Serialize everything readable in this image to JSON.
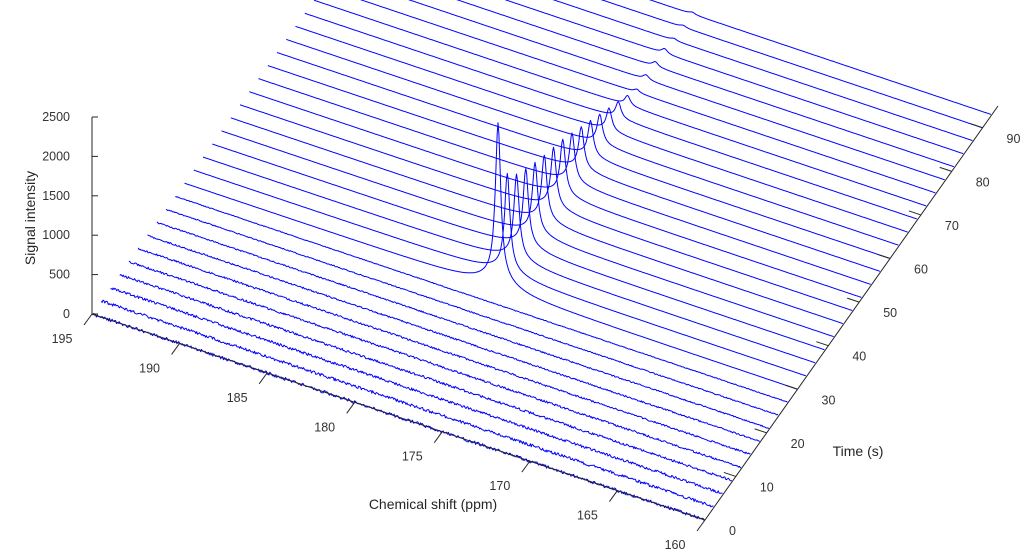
{
  "chart_data": {
    "type": "line",
    "subtype": "waterfall-3d",
    "xlabel": "Chemical shift (ppm)",
    "ylabel": "Time (s)",
    "zlabel": "Signal intensity",
    "xlim": [
      195,
      160
    ],
    "ylim": [
      0,
      95
    ],
    "zlim": [
      0,
      2500
    ],
    "xticks": [
      "195",
      "190",
      "185",
      "180",
      "175",
      "170",
      "165",
      "160"
    ],
    "yticks": [
      "0",
      "10",
      "20",
      "30",
      "40",
      "50",
      "60",
      "70",
      "80",
      "90"
    ],
    "zticks": [
      "0",
      "500",
      "1000",
      "1500",
      "2000",
      "2500"
    ],
    "grid": false,
    "line_color": "#0000ff",
    "peak_position_ppm": 177.1,
    "baseline_noise": 10,
    "series_time_s": [
      0,
      3,
      6,
      9,
      12,
      15,
      18,
      21,
      24,
      27,
      30,
      33,
      36,
      39,
      42,
      45,
      48,
      51,
      54,
      57,
      60,
      63,
      66,
      69,
      72,
      75,
      78,
      81,
      84,
      87,
      90,
      93
    ],
    "series_peak_intensity": [
      0,
      0,
      0,
      0,
      0,
      0,
      0,
      0,
      0,
      0,
      1950,
      1200,
      1040,
      950,
      870,
      800,
      740,
      680,
      600,
      520,
      440,
      360,
      280,
      200,
      120,
      40,
      0,
      0,
      0,
      0,
      0,
      0
    ]
  }
}
